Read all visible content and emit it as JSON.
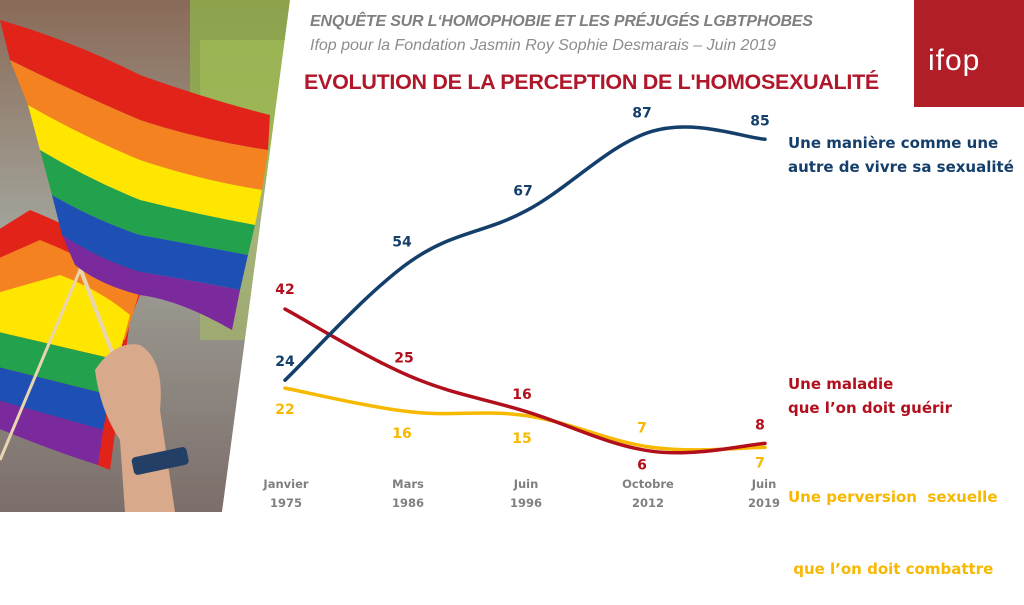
{
  "header": {
    "survey": "ENQUÊTE SUR L‘HOMOPHOBIE ET LES PRÉJUGÉS LGBTPHOBES",
    "source": "Ifop pour la Fondation Jasmin Roy Sophie Desmarais – Juin 2019"
  },
  "logo": {
    "text": "ifop",
    "bg_color": "#b21e28"
  },
  "photo": {
    "icon": "rainbow-flags-photo"
  },
  "chart_data": {
    "type": "line",
    "title": "EVOLUTION DE LA PERCEPTION DE L'HOMOSEXUALITÉ",
    "xlabel": "",
    "ylabel": "",
    "ylim": [
      0,
      100
    ],
    "grid": false,
    "legend": "right",
    "categories": [
      {
        "month": "Janvier",
        "year": "1975"
      },
      {
        "month": "Mars",
        "year": "1986"
      },
      {
        "month": "Juin",
        "year": "1996"
      },
      {
        "month": "Octobre",
        "year": "2012"
      },
      {
        "month": "Juin",
        "year": "2019"
      }
    ],
    "series": [
      {
        "name": "Une manière comme une autre de vivre sa sexualité",
        "legend_lines": [
          "Une manière comme une",
          "autre de vivre sa sexualité"
        ],
        "color": "#153f6b",
        "values": [
          24,
          54,
          67,
          87,
          85
        ]
      },
      {
        "name": "Une maladie que l’on doit guérir",
        "legend_lines": [
          "Une maladie",
          "que l’on doit guérir"
        ],
        "color": "#b20f1d",
        "values": [
          42,
          25,
          16,
          6,
          8
        ]
      },
      {
        "name": "Une perversion sexuelle que l’on doit combattre",
        "legend_lines": [
          "Une perversion  sexuelle",
          " que l’on doit combattre"
        ],
        "color": "#f7b800",
        "values": [
          22,
          16,
          15,
          7,
          7
        ]
      }
    ]
  }
}
